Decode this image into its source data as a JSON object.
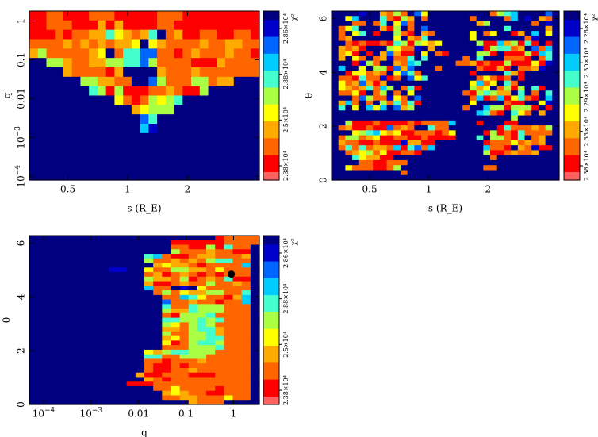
{
  "colors": {
    "scale": [
      "#ff6060",
      "#ff0000",
      "#ff6600",
      "#ffaa00",
      "#ffff00",
      "#aaff44",
      "#44ffcc",
      "#00ccff",
      "#0066ff",
      "#0000cc",
      "#000080"
    ]
  },
  "chart_data": [
    {
      "type": "heatmap",
      "id": "s-q",
      "xlabel": "s (R_E)",
      "ylabel": "q",
      "x_scale": "log",
      "y_scale": "log",
      "xlim": [
        0.32,
        4.6
      ],
      "ylim": [
        8e-05,
        1.8
      ],
      "x_ticks": [
        {
          "v": 0.5,
          "label": "0.5"
        },
        {
          "v": 1,
          "label": "1"
        },
        {
          "v": 2,
          "label": "2"
        }
      ],
      "y_ticks": [
        {
          "v": 1,
          "label": "1",
          "sup": ""
        },
        {
          "v": 0.1,
          "label": "0.1",
          "sup": ""
        },
        {
          "v": 0.01,
          "label": "0.01",
          "sup": ""
        },
        {
          "v": 0.001,
          "label": "10",
          "sup": "−3"
        },
        {
          "v": 0.0001,
          "label": "10",
          "sup": "−4"
        }
      ],
      "colorbar": {
        "label": "χ²",
        "ticks": [
          "2.38×10⁴",
          "2.5×10⁴",
          "2.88×10⁴",
          "2.86×10⁴"
        ]
      },
      "rows_top_to_bottom": [
        "aabbaaabbbaaaaabbbaaaaaaaaa",
        "aabbbaaacacaaaabbaaaaaaaaaa",
        "aaababbccfdcbcfjbcaabbaabba",
        "bbbbcbcbcbccdjdcbbbbcbbccbb",
        "cebbbbbcdjbffhhbbabcbbbcbba",
        "jjeecbbcceeffhebbbbaaacbbbb",
        "jjjjcbbbbacjjjjcbbbcbbbbbbb",
        "jjjjjjeeccbbjjhebbbeebccjjj",
        "jjjjjjjfeaeaaabbcbaaejjjjjj",
        "jjjjjjjjjjdbabedefjjjjjjjjj",
        "jjjjjjjjjjjjcdeeejjjjjjjjjj",
        "jjjjjjjjjjjjjhfjjjjjjjjjjjj",
        "jjjjjjjjjjjjjgijjjjjjjjjjjj",
        "jjjjjjjjjjjjjjjjjjjjjjjjjjj",
        "jjjjjjjjjjjjjjjjjjjjjjjjjjj",
        "jjjjjjjjjjjjjjjjjjjjjjjjjjj",
        "jjjjjjjjjjjjjjjjjjjjjjjjjjj",
        "jjjjjjjjjjjjjjjjjjjjjjjjjjj"
      ]
    },
    {
      "type": "heatmap",
      "id": "s-theta",
      "xlabel": "s (R_E)",
      "ylabel": "θ",
      "x_scale": "log",
      "y_scale": "linear",
      "xlim": [
        0.32,
        4.6
      ],
      "ylim": [
        0,
        6.283
      ],
      "x_ticks": [
        {
          "v": 0.5,
          "label": "0.5"
        },
        {
          "v": 1,
          "label": "1"
        },
        {
          "v": 2,
          "label": "2"
        }
      ],
      "y_ticks": [
        {
          "v": 0,
          "label": "0",
          "sup": ""
        },
        {
          "v": 2,
          "label": "2",
          "sup": ""
        },
        {
          "v": 4,
          "label": "4",
          "sup": ""
        },
        {
          "v": 6,
          "label": "6",
          "sup": ""
        }
      ],
      "colorbar": {
        "label": "χ²",
        "ticks": [
          "2.38×10⁴",
          "2.33×10⁴",
          "2.29×10⁴",
          "2.30×10⁴",
          "2.26×10⁴"
        ]
      },
      "rows_top_to_bottom": [
        "jjjjijjcbebjhdjjjjjjjjjbefgjjjjhj",
        "jjdgjjjfbaecjbjjjjjjbjjjjbgjijcbj",
        "jjjbbjbfjdhbjjjjjjjjjcejjjjjjbjij",
        "jbdfjjjcaejbjhjjjjjjjjjjjfjjjjjcj",
        "jbjdfjajjebajcbjjjjjdjbdjjacjgjdj",
        "jbcjjjjjjdjcbfjjjjjjdjjjjjjjbijjj",
        "jjbabaabafeaedcdjjjjjeaagceafajaj",
        "jcbcajjjedbbijcjjjjjjiaeffbcjhbgj",
        "jcdajajchcaajdjbajjjjeeajaaaeagfj",
        "jcjdbjbcibbfjfjjjjjbjfjjjbbbajbfj",
        "jjjaiebjjcbgfjjjjjbbcabaaeaaadaij",
        "jgjjdjeeahchjjjbjjjjjbaacajbbcijj",
        "jjaddbcbjdhfbjjjjjjjajjjjfcajjjjj",
        "jbbafbbiabjhdfjjjjjjjbdbabjajjjjj",
        "jdbchcacjjjjjjjjjjjjdgbdjfbjjjjjj",
        "jdcbcfbgejbfajjjjjjjecdjbeaejfajj",
        "jbbdajbejbjdjjjjjjjbaefeccjfjbjfj",
        "jjjbhebbidbjhjjjjjjjbgabgadfbajgj",
        "jcgbjbjebfbfajjjjjjjdjjjjbaajjdij",
        "jfjdjgdgjhcejjjjjjjbjjgeeaeeeajaj",
        "jjjjjjjjjjjjjjjjjjjjjgfbajfdbjcjj",
        "jjjjjjjjjjjjjjjjjjjjjjjjjjejjjjjj",
        "jjeaaabaaaababbbbgjjjajjjaajjjjjj",
        "jbcaabaahbcbjjfbbjjjjjjjafbbbcbej",
        "jjjdefgdcdaabbbabdjjjjaeabafbbbbj",
        "jbeebcdaabbaabaaaajjjfjeebafjbcjj",
        "jcbbaabaaaiccaajjjjjjjabbbdbcbcjj",
        "jbfbfbccbgafhbgjjjjjjjgbbajcbiaaj",
        "jjbcdebdaabbajjjjjjjjjeaabcbbcjjj",
        "jjjfdccaajjjjjjjjjjjjjjbjjjjjjjjj",
        "jjjjbbaabbbjjjjjjjjjjjjjjjjjjjjjj",
        "jjdbbbaabejjjjjjjjjjjjbbjjjjjjjjj",
        "jjjjjjjjjjbjjjjjjjjjjjjjjjjjjjjjj",
        "jjjjjjjjjjjjjjjjjjjjjjjjjjjjjjjjj"
      ]
    },
    {
      "type": "heatmap",
      "id": "q-theta",
      "xlabel": "q",
      "ylabel": "θ",
      "x_scale": "log",
      "y_scale": "linear",
      "xlim": [
        5e-05,
        3.5
      ],
      "ylim": [
        0,
        6.283
      ],
      "x_ticks": [
        {
          "v": 0.0001,
          "label": "10",
          "sup": "−4"
        },
        {
          "v": 0.001,
          "label": "10",
          "sup": "−3"
        },
        {
          "v": 0.01,
          "label": "0.01",
          "sup": ""
        },
        {
          "v": 0.1,
          "label": "0.1",
          "sup": ""
        },
        {
          "v": 1,
          "label": "1",
          "sup": ""
        }
      ],
      "y_ticks": [
        {
          "v": 0,
          "label": "0",
          "sup": ""
        },
        {
          "v": 2,
          "label": "2",
          "sup": ""
        },
        {
          "v": 4,
          "label": "4",
          "sup": ""
        },
        {
          "v": 6,
          "label": "6",
          "sup": ""
        }
      ],
      "best_fit": {
        "q": 0.9,
        "theta": 4.85
      },
      "colorbar": {
        "label": "χ²",
        "ticks": [
          "2.38×10⁴",
          "2.5×10⁴",
          "2.88×10⁴",
          "2.86×10⁴"
        ]
      },
      "rows_top_to_bottom": [
        "jjjjjjjjjjjjjjjjjjjjjabbbb",
        "jjjjjjjjjjjjjjjjaaaaaabbbb",
        "jjjjjjjjjjjjjjjjbbaaeafbbj",
        "jjjjjjjjjjjjjjjjebbbcbbaaj",
        "jjjjjjjjjjjjjfgbaabccbbbcj",
        "jjjjjjjjjjjjjebbcbcbeffbbj",
        "jjjjjjjjjjjjjjcdccbabbbbgj",
        "jjjjjjjjjiijjdbbeeccbdbbbj",
        "jjjjjjjjjjjjjbcabcbababbbj",
        "jjjjjjjjjjjjjeccbeabcbfaaj",
        "jjjjjjjjjjjjjcaabcbbebbcbj",
        "jjjjjjjjjjjjjgbbjijdbbbbbj",
        "jjjjjjjjjjjjjjbebdcceebbfj",
        "jjjjjjjjjjjjjjjbbgfdbbacgj",
        "jjjjjjjjjjjjjjjhbbcbbabbgj",
        "jjjjjjjjjjjjjjjfbbfeeebbbj",
        "jjjjjjjjjjjjjjjeccfeeebbbj",
        "jjjjjjjjjjjjjjjbaeeefbbbbj",
        "jjjjjjjjjjjjjjjffeefefbbbj",
        "jjjjjjjjjjjjjjjedbefebbbbj",
        "jjjjjjjjjjjjjjjccbeffcbbbj",
        "jjjjjjjjjjjjjjjebbeefcbbbj",
        "jjjjjjjjjjjjjjjcdbeeffbbbj",
        "jjjjjjjjjjjjjjjdabeffebbbj",
        "jjjjjjjjjjjjjjjbbbeeefbbbj",
        "jjjjjjjjjjjjjdceffeeebbbbj",
        "jjjjjjjjjjjjjffbbeeebbbbbj",
        "jjjjjjjjjjjjjbbabbbcbbbbbj",
        "jjjjjjjjjjjjjbaababbbbbbbj",
        "jjjjjjjjjjjjjbaabbcbbbbbbj",
        "jjjjjjjjjjjjcaabbbaaabbbbj",
        "jjjjjjjjjjjjjcbabbbbbbbbbj",
        "jjjjjjjjjjjaaabbbbbbbbbbbj",
        "jjjjjjjjjjjjjjbbdbbbbabbbj",
        "jjjjjjjjjjjjjjjcdcbbaabbbj",
        "jjjjjjjjjjjjjjjbbccbbbdbbj",
        "jjjjjjjjjjjjjjjjjjcbbbjjjj"
      ]
    }
  ]
}
